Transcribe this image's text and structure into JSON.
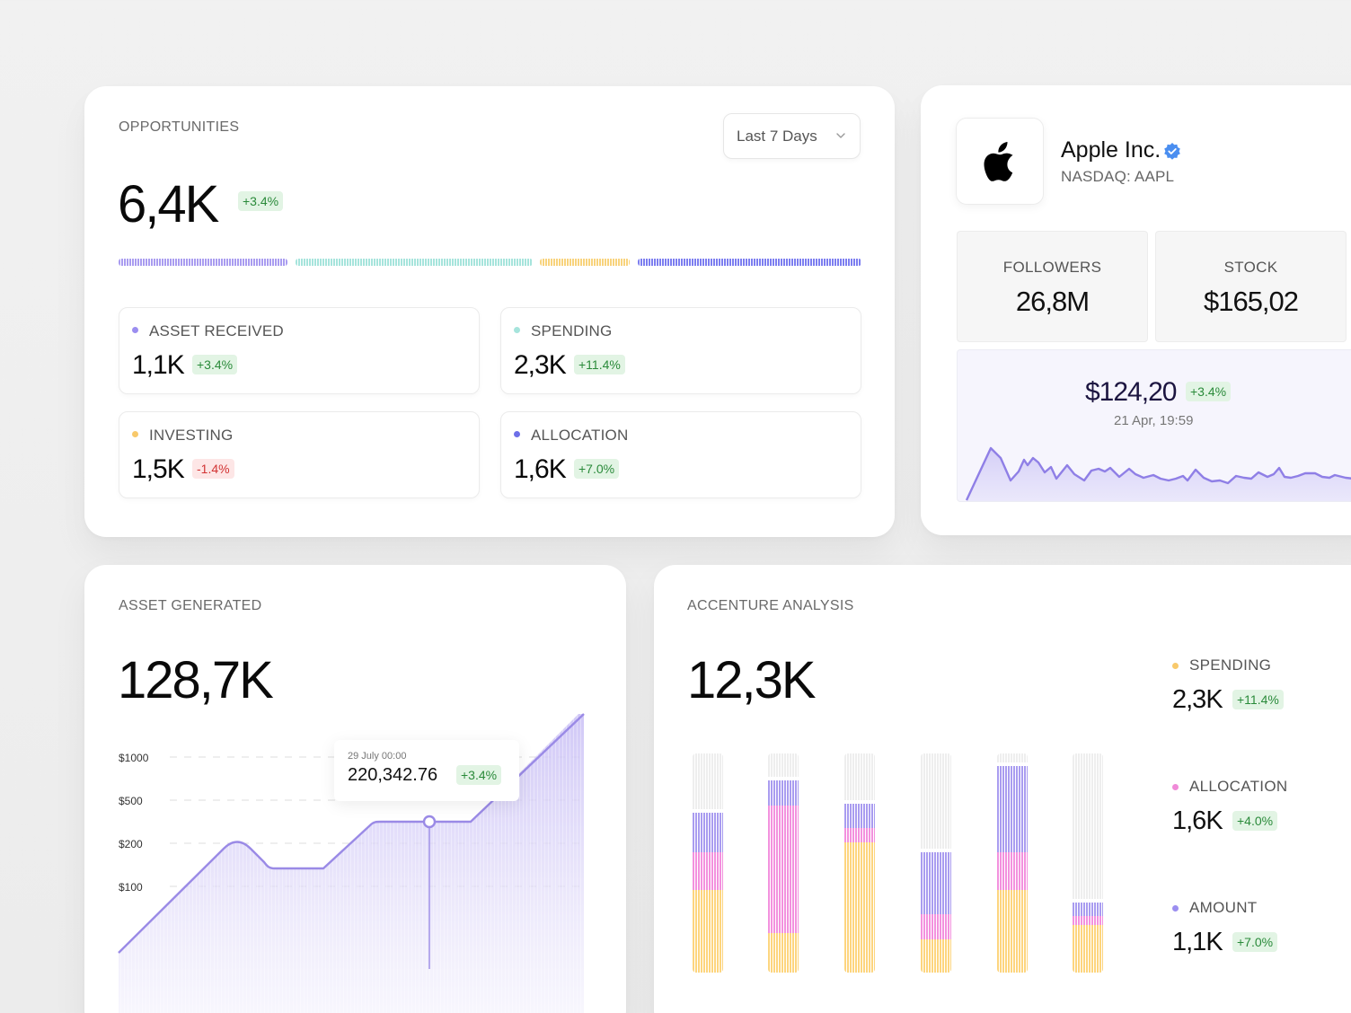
{
  "opportunities": {
    "title": "OPPORTUNITIES",
    "dropdown_label": "Last 7 Days",
    "value": "6,4K",
    "change": "+3.4%",
    "segments": [
      {
        "name": "asset-received",
        "color": "#a99cf0"
      },
      {
        "name": "spending",
        "color": "#a6e4dc"
      },
      {
        "name": "investing",
        "color": "#f8d37c"
      },
      {
        "name": "allocation",
        "color": "#7c7ef0"
      }
    ],
    "stats": [
      {
        "label": "ASSET RECEIVED",
        "value": "1,1K",
        "change": "+3.4%",
        "trend": "pos",
        "color": "#9b8ef0"
      },
      {
        "label": "SPENDING",
        "value": "2,3K",
        "change": "+11.4%",
        "trend": "pos",
        "color": "#a6e4dc"
      },
      {
        "label": "INVESTING",
        "value": "1,5K",
        "change": "-1.4%",
        "trend": "neg",
        "color": "#f8c96b"
      },
      {
        "label": "ALLOCATION",
        "value": "1,6K",
        "change": "+7.0%",
        "trend": "pos",
        "color": "#6d6fe8"
      }
    ]
  },
  "company": {
    "name": "Apple Inc.",
    "ticker": "NASDAQ: AAPL",
    "logo_icon": "apple-logo-icon",
    "verified_icon": "verified-badge-icon",
    "followers_label": "FOLLOWERS",
    "followers_value": "26,8M",
    "stock_label": "STOCK",
    "stock_value": "$165,02",
    "price": "$124,20",
    "price_change": "+3.4%",
    "price_time": "21 Apr, 19:59"
  },
  "asset_generated": {
    "title": "ASSET GENERATED",
    "value": "128,7K",
    "y_ticks": [
      "$1000",
      "$500",
      "$200",
      "$100"
    ],
    "tooltip_date": "29 July 00:00",
    "tooltip_value": "220,342.76",
    "tooltip_change": "+3.4%"
  },
  "accenture": {
    "title": "ACCENTURE ANALYSIS",
    "value": "12,3K",
    "legend": [
      {
        "label": "SPENDING",
        "value": "2,3K",
        "change": "+11.4%",
        "color": "#f8c96b"
      },
      {
        "label": "ALLOCATION",
        "value": "1,6K",
        "change": "+4.0%",
        "color": "#f08ad8"
      },
      {
        "label": "AMOUNT",
        "value": "1,1K",
        "change": "+7.0%",
        "color": "#9b8ef0"
      }
    ]
  },
  "colors": {
    "purple": "#a99cf0",
    "pink": "#f391de",
    "yellow": "#fdd57e",
    "track": "#eeeeee",
    "line": "#9a8ae6"
  }
}
